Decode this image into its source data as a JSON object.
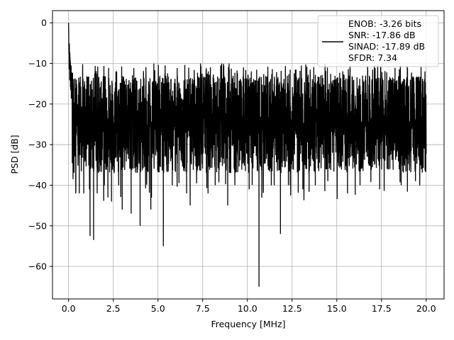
{
  "chart_data": {
    "type": "line",
    "title": "",
    "xlabel": "Frequency [MHz]",
    "ylabel": "PSD [dB]",
    "xlim": [
      -0.9,
      21.0
    ],
    "ylim": [
      -68,
      3
    ],
    "grid": true,
    "x_ticks": [
      0.0,
      2.5,
      5.0,
      7.5,
      10.0,
      12.5,
      15.0,
      17.5,
      20.0
    ],
    "x_tick_labels": [
      "0.0",
      "2.5",
      "5.0",
      "7.5",
      "10.0",
      "12.5",
      "15.0",
      "17.5",
      "20.0"
    ],
    "y_ticks": [
      0,
      -10,
      -20,
      -30,
      -40,
      -50,
      -60
    ],
    "y_tick_labels": [
      "0",
      "−10",
      "−20",
      "−30",
      "−40",
      "−50",
      "−60"
    ],
    "legend_position": "upper-right",
    "line_color": "#000000",
    "series": [
      {
        "style": "noisy-psd",
        "x_range": [
          0.0,
          20.0
        ],
        "peak": [
          0.0,
          0.0
        ],
        "noise_floor_band": [
          -33,
          -14
        ],
        "max_spur": -10,
        "notable_dips": [
          {
            "x": 0.25,
            "y": -38.5
          },
          {
            "x": 0.4,
            "y": -42
          },
          {
            "x": 0.6,
            "y": -42
          },
          {
            "x": 0.85,
            "y": -42
          },
          {
            "x": 1.2,
            "y": -52.5
          },
          {
            "x": 1.4,
            "y": -53.5
          },
          {
            "x": 1.6,
            "y": -42
          },
          {
            "x": 2.0,
            "y": -40
          },
          {
            "x": 2.2,
            "y": -43
          },
          {
            "x": 2.4,
            "y": -44
          },
          {
            "x": 2.8,
            "y": -40
          },
          {
            "x": 3.0,
            "y": -46
          },
          {
            "x": 3.5,
            "y": -47
          },
          {
            "x": 4.0,
            "y": -50
          },
          {
            "x": 4.6,
            "y": -46
          },
          {
            "x": 5.3,
            "y": -55
          },
          {
            "x": 5.8,
            "y": -40
          },
          {
            "x": 6.6,
            "y": -42
          },
          {
            "x": 6.8,
            "y": -45
          },
          {
            "x": 7.8,
            "y": -42
          },
          {
            "x": 8.2,
            "y": -40
          },
          {
            "x": 8.9,
            "y": -45
          },
          {
            "x": 9.3,
            "y": -40
          },
          {
            "x": 10.1,
            "y": -41
          },
          {
            "x": 10.65,
            "y": -65
          },
          {
            "x": 11.5,
            "y": -40
          },
          {
            "x": 11.85,
            "y": -52
          },
          {
            "x": 12.4,
            "y": -40
          },
          {
            "x": 13.1,
            "y": -41
          },
          {
            "x": 13.8,
            "y": -40
          },
          {
            "x": 14.5,
            "y": -39
          },
          {
            "x": 15.6,
            "y": -42
          },
          {
            "x": 16.3,
            "y": -40
          },
          {
            "x": 17.4,
            "y": -41
          },
          {
            "x": 18.6,
            "y": -40
          },
          {
            "x": 19.4,
            "y": -39
          }
        ]
      }
    ],
    "legend": {
      "lines": [
        "ENOB: -3.26 bits",
        "SNR: -17.86 dB",
        "SINAD: -17.89 dB",
        "SFDR: 7.34"
      ]
    }
  }
}
